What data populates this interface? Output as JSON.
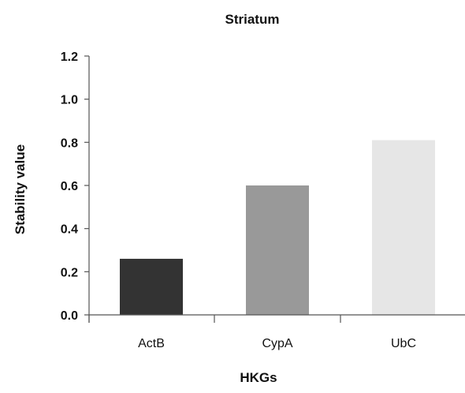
{
  "chart_data": {
    "type": "bar",
    "title": "Striatum",
    "xlabel": "HKGs",
    "ylabel": "Stability value",
    "categories": [
      "ActB",
      "CypA",
      "UbC"
    ],
    "values": [
      0.26,
      0.6,
      0.81
    ],
    "colors": [
      "#333333",
      "#999999",
      "#e6e6e6"
    ],
    "ylim": [
      0,
      1.2
    ],
    "yticks": [
      "0.0",
      "0.2",
      "0.4",
      "0.6",
      "0.8",
      "1.0",
      "1.2"
    ],
    "grid": false,
    "legend": "none"
  }
}
